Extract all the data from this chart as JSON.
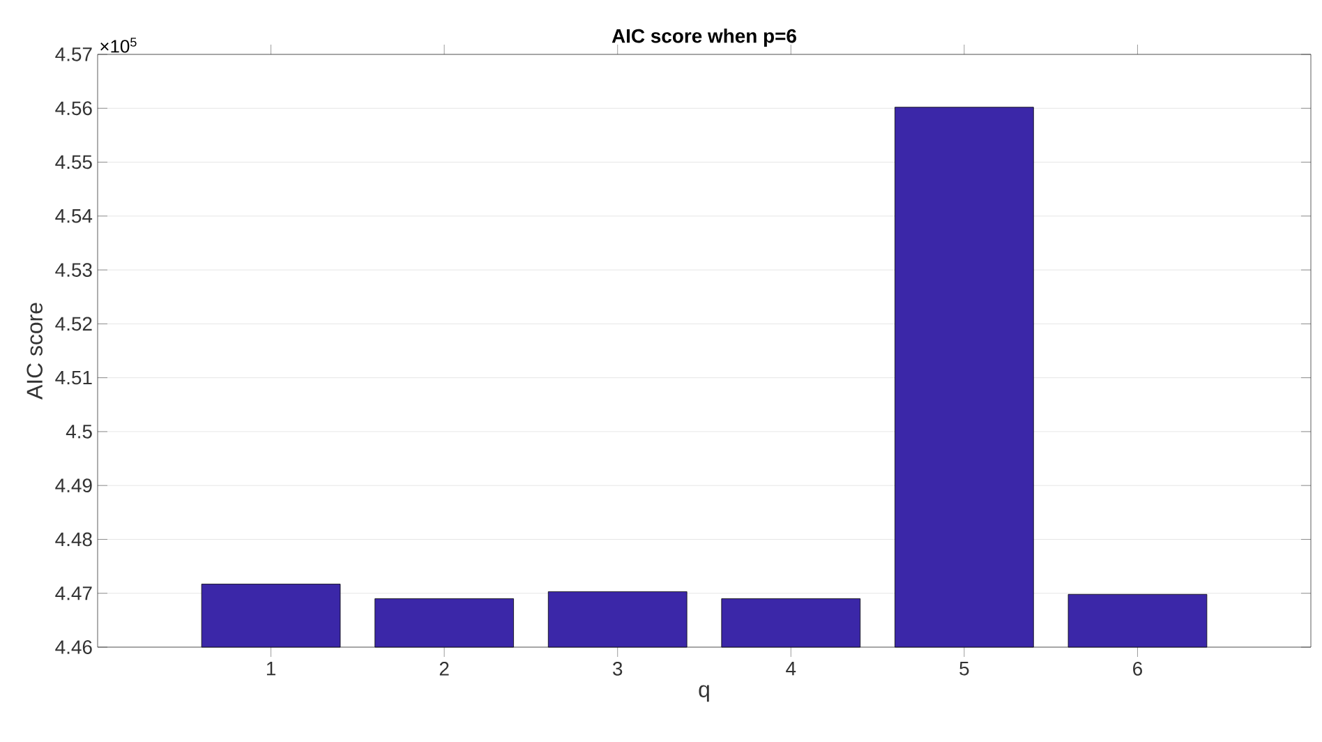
{
  "chart_data": {
    "type": "bar",
    "title": "AIC score when p=6",
    "xlabel": "q",
    "ylabel": "AIC score",
    "annotations": [
      "×10$^{5}$"
    ],
    "categories": [
      "1",
      "2",
      "3",
      "4",
      "5",
      "6"
    ],
    "values": [
      4.4717,
      4.469,
      4.4703,
      4.469,
      4.5602,
      4.4698
    ],
    "color": "#3b27a8",
    "ylim": [
      4.46,
      4.57
    ],
    "yticks": [
      4.46,
      4.47,
      4.48,
      4.49,
      4.5,
      4.51,
      4.52,
      4.53,
      4.54,
      4.55,
      4.56,
      4.57
    ],
    "grid": "y"
  }
}
